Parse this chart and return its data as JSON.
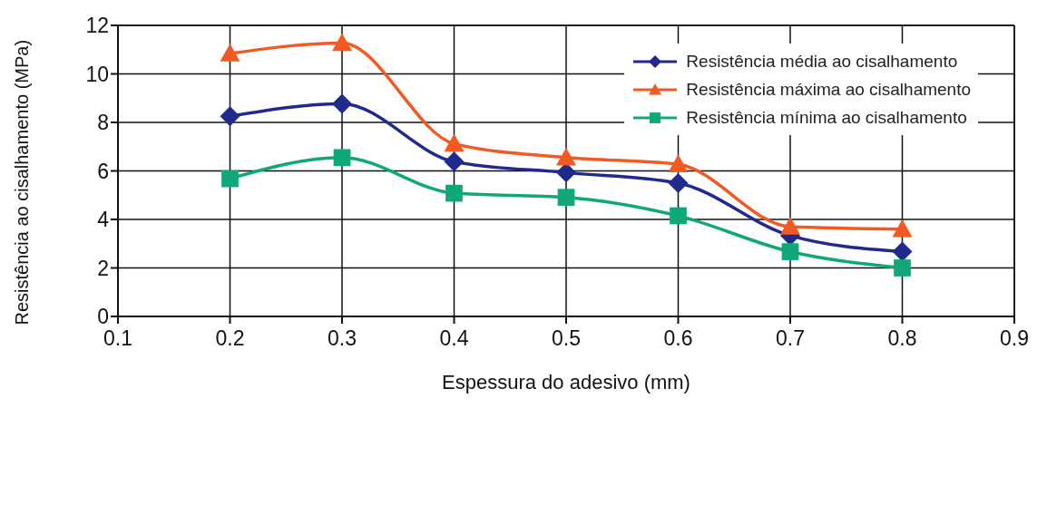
{
  "chart_data": {
    "type": "line",
    "xlabel": "Espessura do adesivo (mm)",
    "ylabel": "Resistência ao cisalhamento (MPa)",
    "x": [
      0.2,
      0.3,
      0.4,
      0.5,
      0.6,
      0.7,
      0.8
    ],
    "series": [
      {
        "name": "Resistência média ao cisalhamento",
        "color": "#1f2a8c",
        "marker": "diamond",
        "values": [
          8.25,
          8.77,
          6.38,
          5.93,
          5.5,
          3.33,
          2.67
        ]
      },
      {
        "name": "Resistência máxima ao cisalhamento",
        "color": "#f25a22",
        "marker": "triangle",
        "values": [
          10.84,
          11.27,
          7.12,
          6.55,
          6.27,
          3.7,
          3.6
        ]
      },
      {
        "name": "Resistência mínima ao cisalhamento",
        "color": "#10a878",
        "marker": "square",
        "values": [
          5.68,
          6.55,
          5.08,
          4.91,
          4.15,
          2.67,
          2.0
        ]
      }
    ],
    "xlim": [
      0.1,
      0.9
    ],
    "xticks": [
      0.1,
      0.2,
      0.3,
      0.4,
      0.5,
      0.6,
      0.7,
      0.8,
      0.9
    ],
    "ylim": [
      0,
      12
    ],
    "yticks": [
      0,
      2,
      4,
      6,
      8,
      10,
      12
    ],
    "grid": true,
    "legend": "top right",
    "line_style": "solid"
  }
}
